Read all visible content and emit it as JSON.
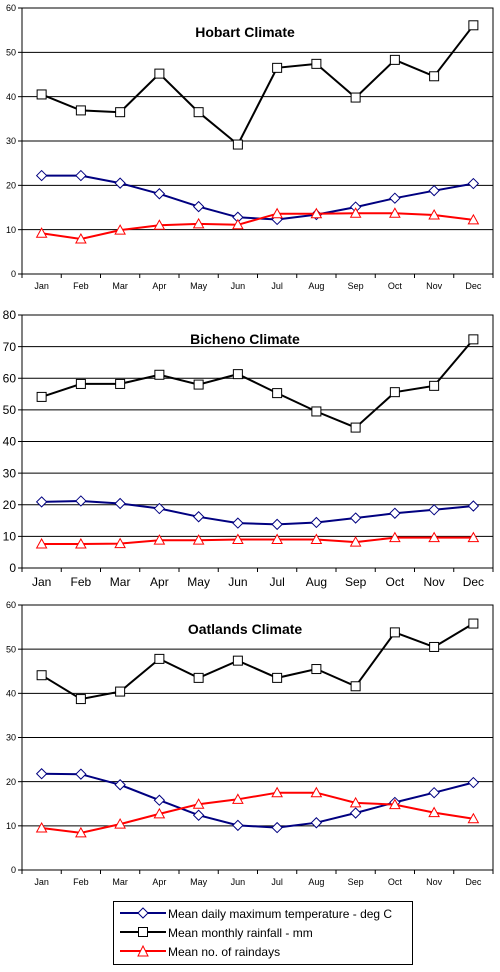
{
  "chart_data": [
    {
      "type": "line",
      "title": "Hobart Climate",
      "categories": [
        "Jan",
        "Feb",
        "Mar",
        "Apr",
        "May",
        "Jun",
        "Jul",
        "Aug",
        "Sep",
        "Oct",
        "Nov",
        "Dec"
      ],
      "ylim": [
        0,
        60
      ],
      "yticks": [
        0,
        10,
        20,
        30,
        40,
        50,
        60
      ],
      "grid": "horizontal",
      "series": [
        {
          "name": "Mean daily maximum temperature - deg C",
          "color": "#000080",
          "marker": "diamond",
          "values": [
            22.2,
            22.2,
            20.5,
            18.1,
            15.2,
            12.8,
            12.3,
            13.4,
            15.1,
            17.1,
            18.8,
            20.4
          ]
        },
        {
          "name": "Mean monthly rainfall - mm",
          "color": "#000000",
          "marker": "square",
          "values": [
            40.5,
            36.9,
            36.5,
            45.2,
            36.5,
            29.2,
            46.5,
            47.4,
            39.8,
            48.3,
            44.6,
            56.1
          ]
        },
        {
          "name": "Mean no. of raindays",
          "color": "#ff0000",
          "marker": "triangle",
          "values": [
            9.2,
            7.9,
            9.9,
            11.0,
            11.3,
            11.1,
            13.6,
            13.6,
            13.7,
            13.7,
            13.3,
            12.2
          ]
        }
      ]
    },
    {
      "type": "line",
      "title": "Bicheno Climate",
      "categories": [
        "Jan",
        "Feb",
        "Mar",
        "Apr",
        "May",
        "Jun",
        "Jul",
        "Aug",
        "Sep",
        "Oct",
        "Nov",
        "Dec"
      ],
      "ylim": [
        0,
        80
      ],
      "yticks": [
        0,
        10,
        20,
        30,
        40,
        50,
        60,
        70,
        80
      ],
      "grid": "horizontal",
      "series": [
        {
          "name": "Mean daily maximum temperature - deg C",
          "color": "#000080",
          "marker": "diamond",
          "values": [
            20.9,
            21.2,
            20.4,
            18.8,
            16.2,
            14.2,
            13.8,
            14.4,
            15.8,
            17.3,
            18.4,
            19.6
          ]
        },
        {
          "name": "Mean monthly rainfall - mm",
          "color": "#000000",
          "marker": "square",
          "values": [
            54.1,
            58.2,
            58.2,
            61.1,
            58.0,
            61.3,
            55.3,
            49.5,
            44.4,
            55.6,
            57.6,
            72.3
          ]
        },
        {
          "name": "Mean no. of raindays",
          "color": "#ff0000",
          "marker": "triangle",
          "values": [
            7.6,
            7.6,
            7.7,
            8.8,
            8.8,
            9.0,
            9.0,
            9.0,
            8.2,
            9.6,
            9.6,
            9.6
          ]
        }
      ]
    },
    {
      "type": "line",
      "title": "Oatlands Climate",
      "categories": [
        "Jan",
        "Feb",
        "Mar",
        "Apr",
        "May",
        "Jun",
        "Jul",
        "Aug",
        "Sep",
        "Oct",
        "Nov",
        "Dec"
      ],
      "ylim": [
        0,
        60
      ],
      "yticks": [
        0,
        10,
        20,
        30,
        40,
        50,
        60
      ],
      "grid": "horizontal",
      "series": [
        {
          "name": "Mean daily maximum temperature - deg C",
          "color": "#000080",
          "marker": "diamond",
          "values": [
            21.8,
            21.7,
            19.3,
            15.8,
            12.4,
            10.1,
            9.6,
            10.7,
            12.9,
            15.3,
            17.5,
            19.8
          ]
        },
        {
          "name": "Mean monthly rainfall - mm",
          "color": "#000000",
          "marker": "square",
          "values": [
            44.1,
            38.7,
            40.4,
            47.8,
            43.5,
            47.4,
            43.5,
            45.5,
            41.6,
            53.8,
            50.5,
            55.8
          ]
        },
        {
          "name": "Mean no. of raindays",
          "color": "#ff0000",
          "marker": "triangle",
          "values": [
            9.5,
            8.4,
            10.4,
            12.7,
            14.9,
            16.0,
            17.5,
            17.5,
            15.2,
            14.8,
            13.0,
            11.6
          ]
        }
      ]
    }
  ],
  "legend": {
    "items": [
      {
        "label": "Mean daily maximum temperature - deg C",
        "color": "#000080",
        "marker": "diamond"
      },
      {
        "label": "Mean monthly rainfall - mm",
        "color": "#000000",
        "marker": "square"
      },
      {
        "label": "Mean no. of raindays",
        "color": "#ff0000",
        "marker": "triangle"
      }
    ]
  }
}
